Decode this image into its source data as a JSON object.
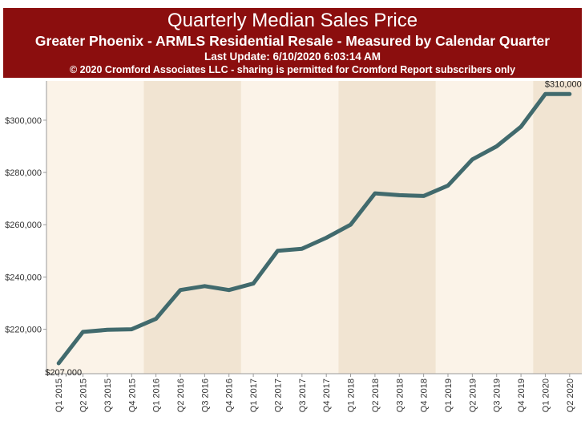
{
  "header": {
    "title": "Quarterly Median Sales Price",
    "subtitle": "Greater Phoenix - ARMLS Residential Resale - Measured by Calendar Quarter",
    "update": "Last Update: 6/10/2020 6:03:14 AM",
    "copyright": "© 2020 Cromford Associates LLC - sharing is permitted for Cromford Report subscribers only"
  },
  "colors": {
    "header_bg": "#8b0e0e",
    "plot_band_light": "#fbf3e8",
    "plot_band_dark": "#f1e4d2",
    "line": "#416a6d"
  },
  "chart_data": {
    "type": "line",
    "title": "Quarterly Median Sales Price",
    "categories": [
      "Q1 2015",
      "Q2 2015",
      "Q3 2015",
      "Q4 2015",
      "Q1 2016",
      "Q2 2016",
      "Q3 2016",
      "Q4 2016",
      "Q1 2017",
      "Q2 2017",
      "Q3 2017",
      "Q4 2017",
      "Q1 2018",
      "Q2 2018",
      "Q3 2018",
      "Q4 2018",
      "Q1 2019",
      "Q2 2019",
      "Q3 2019",
      "Q4 2019",
      "Q1 2020",
      "Q2 2020"
    ],
    "values": [
      207000,
      219000,
      219800,
      220000,
      224000,
      235000,
      236500,
      235000,
      237500,
      250000,
      250800,
      255000,
      260000,
      272000,
      271300,
      271000,
      275000,
      285000,
      290000,
      297500,
      310000,
      310000
    ],
    "ylim": [
      203000,
      315000
    ],
    "yticks": [
      220000,
      240000,
      260000,
      280000,
      300000
    ],
    "ytick_labels": [
      "$220,000",
      "$240,000",
      "$260,000",
      "$280,000",
      "$300,000"
    ],
    "data_labels": [
      {
        "index": 0,
        "text": "$207,000"
      },
      {
        "index": 21,
        "text": "$310,000"
      }
    ],
    "grid": false,
    "legend": "none"
  }
}
